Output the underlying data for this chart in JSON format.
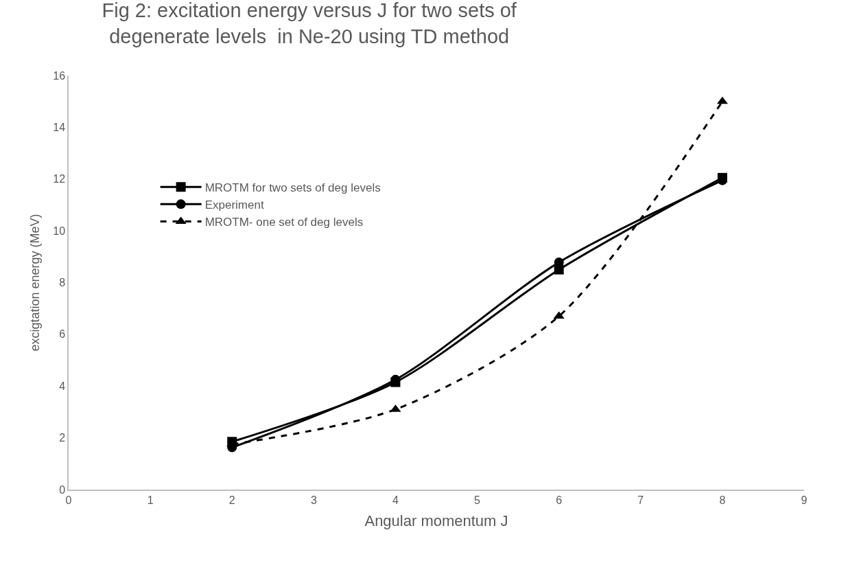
{
  "chart_data": {
    "type": "line",
    "title": "Fig 2: excitation energy versus J for two sets of\ndegenerate levels  in Ne-20 using TD method",
    "xlabel": "Angular momentum J",
    "ylabel": "excigtation energy (MeV)",
    "x": [
      2,
      4,
      6,
      8
    ],
    "series": [
      {
        "name": "MROTM for two sets of deg levels",
        "color": "#000000",
        "values": [
          1.85,
          4.15,
          8.5,
          12.05
        ],
        "marker": "square",
        "line_style": "solid"
      },
      {
        "name": "Experiment",
        "color": "#000000",
        "values": [
          1.63,
          4.25,
          8.78,
          11.95
        ],
        "marker": "circle",
        "line_style": "solid"
      },
      {
        "name": "MROTM- one set of deg levels",
        "color": "#000000",
        "values": [
          1.75,
          3.1,
          6.7,
          15.0
        ],
        "marker": "triangle",
        "line_style": "dashed"
      }
    ],
    "xlim": [
      0,
      9
    ],
    "xticks": [
      0,
      1,
      2,
      3,
      4,
      5,
      6,
      7,
      8,
      9
    ],
    "ylim": [
      0,
      16
    ],
    "yticks": [
      0,
      2,
      4,
      6,
      8,
      10,
      12,
      14,
      16
    ],
    "legend": "left"
  }
}
